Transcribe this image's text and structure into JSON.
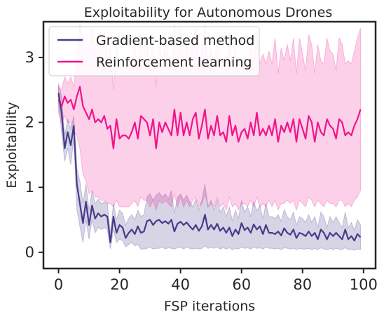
{
  "chart_data": {
    "type": "line",
    "title": "Exploitability for Autonomous Drones",
    "xlabel": "FSP iterations",
    "ylabel": "Exploitability",
    "xlim": [
      -4.95,
      103.95
    ],
    "ylim": [
      -0.25,
      3.55
    ],
    "xticks": [
      0,
      20,
      40,
      60,
      80,
      100
    ],
    "yticks": [
      0,
      1,
      2,
      3
    ],
    "grid": false,
    "legend_position": "top-left",
    "x": [
      0,
      1,
      2,
      3,
      4,
      5,
      6,
      7,
      8,
      9,
      10,
      11,
      12,
      13,
      14,
      15,
      16,
      17,
      18,
      19,
      20,
      21,
      22,
      23,
      24,
      25,
      26,
      27,
      28,
      29,
      30,
      31,
      32,
      33,
      34,
      35,
      36,
      37,
      38,
      39,
      40,
      41,
      42,
      43,
      44,
      45,
      46,
      47,
      48,
      49,
      50,
      51,
      52,
      53,
      54,
      55,
      56,
      57,
      58,
      59,
      60,
      61,
      62,
      63,
      64,
      65,
      66,
      67,
      68,
      69,
      70,
      71,
      72,
      73,
      74,
      75,
      76,
      77,
      78,
      79,
      80,
      81,
      82,
      83,
      84,
      85,
      86,
      87,
      88,
      89,
      90,
      91,
      92,
      93,
      94,
      95,
      96,
      97,
      98,
      99
    ],
    "series": [
      {
        "name": "Gradient-based method",
        "color": "#463c8a",
        "values": [
          2.45,
          2.15,
          1.6,
          1.85,
          1.65,
          1.95,
          1.05,
          0.75,
          0.45,
          0.78,
          0.42,
          0.72,
          0.52,
          0.6,
          0.55,
          0.58,
          0.55,
          0.15,
          0.55,
          0.3,
          0.42,
          0.38,
          0.22,
          0.3,
          0.35,
          0.28,
          0.4,
          0.3,
          0.32,
          0.48,
          0.5,
          0.42,
          0.48,
          0.5,
          0.45,
          0.48,
          0.44,
          0.5,
          0.32,
          0.44,
          0.47,
          0.42,
          0.46,
          0.4,
          0.35,
          0.42,
          0.33,
          0.4,
          0.58,
          0.35,
          0.42,
          0.35,
          0.44,
          0.33,
          0.38,
          0.3,
          0.38,
          0.25,
          0.35,
          0.28,
          0.45,
          0.34,
          0.38,
          0.3,
          0.43,
          0.35,
          0.4,
          0.28,
          0.42,
          0.3,
          0.3,
          0.28,
          0.32,
          0.26,
          0.37,
          0.3,
          0.27,
          0.35,
          0.22,
          0.3,
          0.28,
          0.25,
          0.32,
          0.25,
          0.3,
          0.2,
          0.35,
          0.3,
          0.2,
          0.3,
          0.25,
          0.3,
          0.25,
          0.2,
          0.35,
          0.2,
          0.25,
          0.18,
          0.28,
          0.23
        ],
        "lower": [
          2.3,
          1.85,
          1.4,
          1.6,
          1.35,
          1.75,
          0.65,
          0.4,
          0.15,
          0.5,
          0.2,
          0.5,
          0.3,
          0.38,
          0.35,
          0.38,
          0.35,
          0.05,
          0.35,
          0.15,
          0.2,
          0.18,
          0.08,
          0.12,
          0.15,
          0.1,
          0.12,
          0.05,
          0.05,
          0.06,
          0.08,
          0.05,
          0.06,
          0.06,
          0.08,
          0.05,
          0.07,
          0.06,
          0.05,
          0.07,
          0.08,
          0.05,
          0.08,
          0.06,
          0.05,
          0.06,
          0.05,
          0.06,
          0.1,
          0.06,
          0.08,
          0.06,
          0.08,
          0.05,
          0.07,
          0.05,
          0.07,
          0.04,
          0.06,
          0.05,
          0.08,
          0.06,
          0.07,
          0.05,
          0.08,
          0.06,
          0.07,
          0.05,
          0.08,
          0.06,
          0.06,
          0.05,
          0.06,
          0.04,
          0.07,
          0.06,
          0.05,
          0.06,
          0.04,
          0.06,
          0.05,
          0.05,
          0.06,
          0.04,
          0.06,
          0.04,
          0.07,
          0.05,
          0.04,
          0.06,
          0.04,
          0.06,
          0.05,
          0.04,
          0.07,
          0.04,
          0.05,
          0.03,
          0.05,
          0.04
        ],
        "upper": [
          2.6,
          2.4,
          1.8,
          2.05,
          1.9,
          2.1,
          1.3,
          1.1,
          0.75,
          1.05,
          0.65,
          0.95,
          0.75,
          0.82,
          0.75,
          0.78,
          0.75,
          0.3,
          0.75,
          0.5,
          0.65,
          0.6,
          0.42,
          0.52,
          0.58,
          0.5,
          0.65,
          0.55,
          0.58,
          0.85,
          0.9,
          0.8,
          0.88,
          0.92,
          0.85,
          0.9,
          0.82,
          0.95,
          0.6,
          0.85,
          0.9,
          0.8,
          0.88,
          0.78,
          0.7,
          0.82,
          0.65,
          0.8,
          1.05,
          0.7,
          0.8,
          0.65,
          0.82,
          0.62,
          0.7,
          0.55,
          0.7,
          0.48,
          0.65,
          0.52,
          0.8,
          0.62,
          0.7,
          0.56,
          0.78,
          0.64,
          0.72,
          0.52,
          0.75,
          0.55,
          0.55,
          0.52,
          0.58,
          0.48,
          0.66,
          0.55,
          0.5,
          0.62,
          0.42,
          0.55,
          0.52,
          0.46,
          0.58,
          0.46,
          0.55,
          0.38,
          0.62,
          0.55,
          0.38,
          0.55,
          0.46,
          0.55,
          0.46,
          0.38,
          0.62,
          0.38,
          0.46,
          0.34,
          0.5,
          0.42
        ]
      },
      {
        "name": "Reinforcement learning",
        "color": "#f0148c",
        "values": [
          2.35,
          2.25,
          2.4,
          2.3,
          2.35,
          2.2,
          2.4,
          2.55,
          2.25,
          2.15,
          2.05,
          2.2,
          2.0,
          2.05,
          2.0,
          2.1,
          1.9,
          1.95,
          1.6,
          2.05,
          1.75,
          1.8,
          1.8,
          1.75,
          1.85,
          2.0,
          1.75,
          2.1,
          2.05,
          2.0,
          1.8,
          2.05,
          1.6,
          2.0,
          1.85,
          2.0,
          1.9,
          1.8,
          2.2,
          1.8,
          2.15,
          1.8,
          2.0,
          1.8,
          2.05,
          2.15,
          1.75,
          1.95,
          2.2,
          1.75,
          1.95,
          1.8,
          2.1,
          1.8,
          1.85,
          1.7,
          2.1,
          1.8,
          1.95,
          1.7,
          1.85,
          1.9,
          1.75,
          2.0,
          1.8,
          2.15,
          1.8,
          1.9,
          1.8,
          1.95,
          1.8,
          2.05,
          1.7,
          1.95,
          1.85,
          2.0,
          1.85,
          2.05,
          1.7,
          2.05,
          1.9,
          1.75,
          2.1,
          2.0,
          1.7,
          2.0,
          1.85,
          1.8,
          2.05,
          1.95,
          1.9,
          1.75,
          2.05,
          2.0,
          1.8,
          1.85,
          1.8,
          1.95,
          2.05,
          2.2
        ],
        "lower": [
          2.15,
          2.0,
          2.1,
          2.0,
          2.0,
          1.85,
          1.8,
          1.6,
          1.2,
          1.1,
          0.9,
          0.95,
          0.85,
          0.85,
          0.8,
          0.8,
          0.75,
          0.75,
          0.7,
          0.8,
          0.7,
          0.7,
          0.7,
          0.7,
          0.75,
          0.8,
          0.7,
          0.85,
          0.8,
          0.8,
          0.7,
          0.8,
          0.65,
          0.8,
          0.75,
          0.8,
          0.75,
          0.7,
          0.9,
          0.7,
          0.85,
          0.7,
          0.8,
          0.7,
          0.8,
          0.85,
          0.7,
          0.75,
          0.9,
          0.7,
          0.75,
          0.7,
          0.85,
          0.7,
          0.75,
          0.65,
          0.85,
          0.7,
          0.75,
          0.65,
          0.75,
          0.75,
          0.7,
          0.8,
          0.7,
          0.85,
          0.7,
          0.75,
          0.7,
          0.8,
          0.7,
          0.8,
          0.65,
          0.75,
          0.75,
          0.8,
          0.75,
          0.8,
          0.65,
          0.8,
          0.75,
          0.7,
          0.85,
          0.8,
          0.7,
          0.8,
          0.75,
          0.7,
          0.8,
          0.75,
          0.75,
          0.7,
          0.8,
          0.8,
          0.7,
          0.75,
          0.7,
          0.8,
          0.85,
          0.95
        ],
        "upper": [
          2.55,
          2.5,
          2.7,
          2.6,
          2.7,
          2.55,
          3.0,
          3.5,
          3.3,
          3.2,
          3.2,
          3.45,
          3.15,
          3.25,
          3.2,
          3.4,
          3.05,
          3.15,
          2.5,
          3.3,
          2.8,
          2.9,
          2.9,
          2.8,
          2.95,
          3.2,
          2.8,
          3.35,
          3.3,
          3.2,
          2.9,
          3.3,
          2.55,
          3.2,
          2.95,
          3.2,
          3.05,
          2.9,
          3.5,
          2.9,
          3.45,
          2.9,
          3.2,
          2.9,
          3.3,
          3.45,
          2.8,
          3.15,
          3.5,
          2.8,
          3.15,
          2.9,
          3.35,
          2.9,
          2.95,
          2.75,
          3.35,
          2.9,
          3.15,
          2.75,
          2.95,
          3.05,
          2.8,
          3.2,
          2.9,
          3.45,
          2.9,
          3.05,
          2.9,
          3.1,
          2.9,
          3.3,
          2.75,
          3.15,
          2.95,
          3.2,
          2.95,
          3.3,
          2.75,
          3.3,
          3.05,
          2.8,
          3.35,
          3.2,
          2.75,
          3.2,
          2.95,
          2.9,
          3.3,
          3.1,
          3.05,
          2.8,
          3.3,
          3.2,
          2.9,
          2.95,
          2.9,
          3.1,
          3.3,
          3.45
        ]
      }
    ]
  }
}
